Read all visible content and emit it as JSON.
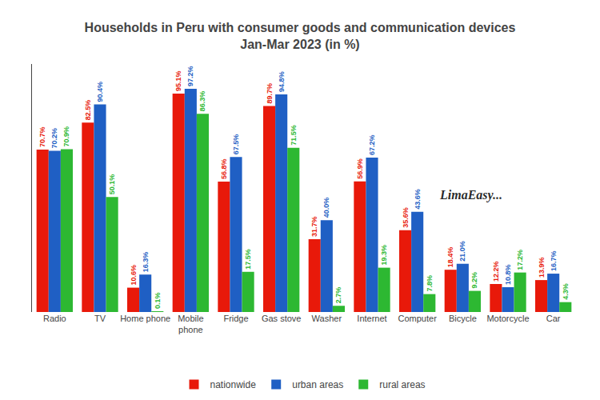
{
  "chart_data": {
    "type": "bar",
    "title": "Households in Peru with consumer goods and communication devices\nJan-Mar 2023 (in %)",
    "categories": [
      "Radio",
      "TV",
      "Home phone",
      "Mobile\nphone",
      "Fridge",
      "Gas stove",
      "Washer",
      "Internet",
      "Computer",
      "Bicycle",
      "Motorcycle",
      "Car"
    ],
    "series": [
      {
        "name": "nationwide",
        "color": "#e8190a",
        "values": [
          70.7,
          82.5,
          10.6,
          95.1,
          56.8,
          89.7,
          31.7,
          56.9,
          35.6,
          18.4,
          12.2,
          13.9
        ],
        "value_labels": [
          "70.7%",
          "82.5%",
          "10.6%",
          "95.1%",
          "56.8%",
          "89.7%",
          "31.7%",
          "56.9%",
          "35.6%",
          "18.4%",
          "12.2%",
          "13.9%"
        ]
      },
      {
        "name": "urban areas",
        "color": "#1f5fc4",
        "values": [
          70.2,
          90.4,
          16.3,
          97.2,
          67.5,
          94.8,
          40.0,
          67.2,
          43.6,
          21.0,
          10.8,
          16.7
        ],
        "value_labels": [
          "70.2%",
          "90.4%",
          "16.3%",
          "97.2%",
          "67.5%",
          "94.8%",
          "40.0%",
          "67.2%",
          "43.6%",
          "21.0%",
          "10.8%",
          "16.7%"
        ]
      },
      {
        "name": "rural areas",
        "color": "#2db832",
        "values": [
          70.9,
          50.1,
          0.1,
          86.3,
          17.5,
          71.5,
          2.7,
          19.3,
          7.8,
          9.2,
          17.2,
          4.3
        ],
        "value_labels": [
          "70.9%",
          "50.1%",
          "0.1%",
          "86.3%",
          "17.5%",
          "71.5%",
          "2.7%",
          "19.3%",
          "7.8%",
          "9.2%",
          "17.2%",
          "4.3%"
        ]
      }
    ],
    "ylim": [
      0,
      108
    ],
    "grid": false,
    "tick_labels": "x",
    "data_labels": true,
    "legend": "bottom",
    "annotations": [
      "LimaEasy..."
    ]
  }
}
